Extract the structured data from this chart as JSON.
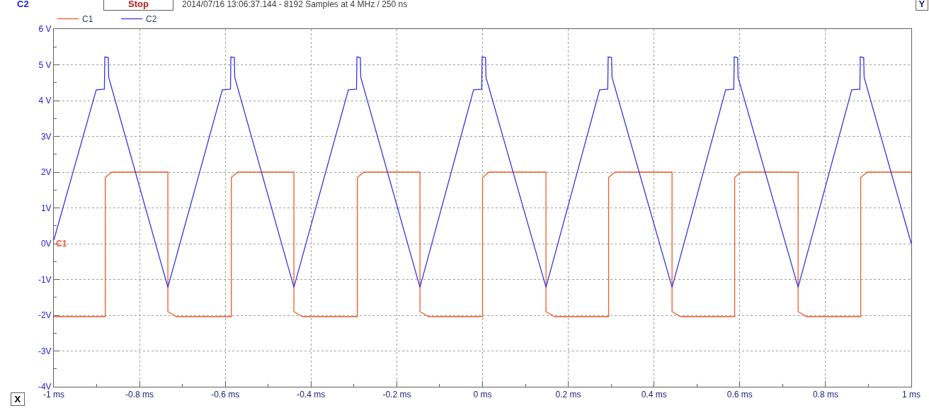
{
  "chart_data": {
    "type": "line",
    "ylabel": "C2",
    "subtitle": "2014/07/16 13:06:37.144 - 8192 Samples at 4 MHz / 250 ns",
    "annotations": [
      "Stop",
      "X",
      "Y",
      {
        "text": "C1",
        "x": -1,
        "y": 0
      }
    ],
    "xlim": [
      -1,
      1
    ],
    "ylim": [
      -4,
      6
    ],
    "xticks": [
      {
        "value": -1,
        "label": "-1 ms"
      },
      {
        "value": -0.8,
        "label": "-0.8 ms"
      },
      {
        "value": -0.6,
        "label": "-0.6 ms"
      },
      {
        "value": -0.4,
        "label": "-0.4 ms"
      },
      {
        "value": -0.2,
        "label": "-0.2 ms"
      },
      {
        "value": 0,
        "label": "0 ms"
      },
      {
        "value": 0.2,
        "label": "0.2 ms"
      },
      {
        "value": 0.4,
        "label": "0.4 ms"
      },
      {
        "value": 0.6,
        "label": "0.6 ms"
      },
      {
        "value": 0.8,
        "label": "0.8 ms"
      },
      {
        "value": 1,
        "label": "1 ms"
      }
    ],
    "yticks": [
      {
        "value": -4,
        "label": "-4V"
      },
      {
        "value": -3,
        "label": "-3V"
      },
      {
        "value": -2,
        "label": "-2V"
      },
      {
        "value": -1,
        "label": "-1V"
      },
      {
        "value": 0,
        "label": "0V"
      },
      {
        "value": 1,
        "label": "1V"
      },
      {
        "value": 2,
        "label": "2V"
      },
      {
        "value": 3,
        "label": "3V"
      },
      {
        "value": 4,
        "label": "4 V"
      },
      {
        "value": 5,
        "label": "5 V"
      },
      {
        "value": 6,
        "label": "6 V"
      }
    ],
    "grid": true,
    "legend": "top left",
    "marker": "none",
    "line_style": "solid",
    "series": [
      {
        "name": "C1",
        "color": "#f05a28",
        "x": [
          -1.0,
          -0.88,
          -0.88,
          -0.865,
          -0.734,
          -0.734,
          -0.714,
          -0.586,
          -0.586,
          -0.571,
          -0.44,
          -0.44,
          -0.42,
          -0.292,
          -0.292,
          -0.277,
          -0.146,
          -0.146,
          -0.126,
          0,
          0,
          0.015,
          0.148,
          0.148,
          0.168,
          0.294,
          0.294,
          0.309,
          0.442,
          0.442,
          0.462,
          0.588,
          0.588,
          0.603,
          0.736,
          0.736,
          0.756,
          0.882,
          0.882,
          0.897,
          1.0
        ],
        "values": [
          -2.04,
          -2.04,
          1.85,
          2.0,
          2.0,
          -1.9,
          -2.04,
          -2.04,
          1.85,
          2.0,
          2.0,
          -1.9,
          -2.04,
          -2.04,
          1.85,
          2.0,
          2.0,
          -1.9,
          -2.04,
          -2.04,
          1.85,
          2.0,
          2.0,
          -1.9,
          -2.04,
          -2.04,
          1.85,
          2.0,
          2.0,
          -1.9,
          -2.04,
          -2.04,
          1.85,
          2.0,
          2.0,
          -1.9,
          -2.04,
          -2.04,
          1.85,
          2.0,
          2.0
        ]
      },
      {
        "name": "C2",
        "color": "#3535e6",
        "x": [
          -1.0,
          -0.901,
          -0.882,
          -0.881,
          -0.873,
          -0.872,
          -0.734,
          -0.607,
          -0.588,
          -0.587,
          -0.579,
          -0.578,
          -0.44,
          -0.313,
          -0.294,
          -0.293,
          -0.285,
          -0.284,
          -0.146,
          -0.021,
          -0.002,
          -0.001,
          0.007,
          0.008,
          0.148,
          0.273,
          0.292,
          0.293,
          0.301,
          0.302,
          0.442,
          0.567,
          0.586,
          0.587,
          0.595,
          0.596,
          0.736,
          0.861,
          0.88,
          0.881,
          0.889,
          0.89,
          1.0
        ],
        "values": [
          0.1,
          4.3,
          4.32,
          5.22,
          5.2,
          4.65,
          -1.22,
          4.3,
          4.32,
          5.22,
          5.2,
          4.65,
          -1.22,
          4.3,
          4.32,
          5.22,
          5.2,
          4.65,
          -1.22,
          4.3,
          4.32,
          5.22,
          5.2,
          4.65,
          -1.22,
          4.3,
          4.32,
          5.22,
          5.2,
          4.65,
          -1.22,
          4.3,
          4.32,
          5.22,
          5.2,
          4.65,
          -1.22,
          4.3,
          4.32,
          5.22,
          5.2,
          4.65,
          0.0
        ]
      }
    ]
  }
}
